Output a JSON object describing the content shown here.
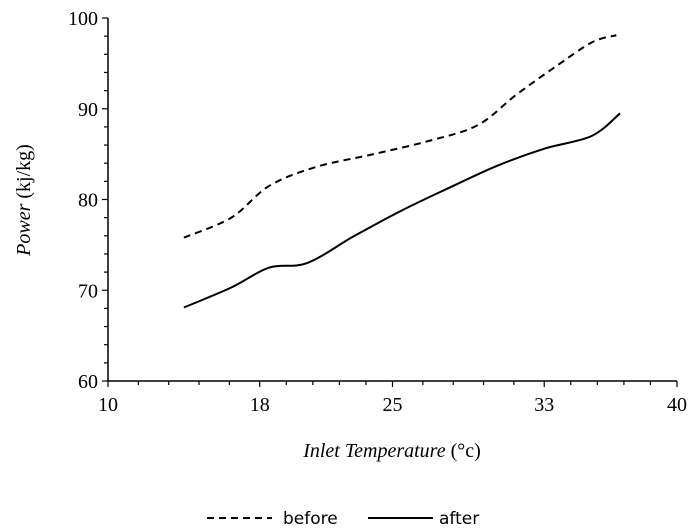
{
  "chart_data": {
    "type": "line",
    "xlabel": {
      "italic": "Inlet Temperature",
      "unit": " (°c)"
    },
    "ylabel": {
      "italic": "Power",
      "unit": " (kj/kg)"
    },
    "xlim": [
      10,
      40
    ],
    "ylim": [
      60,
      100
    ],
    "xticks": [
      10,
      18,
      25,
      33,
      40
    ],
    "xtick_labels": [
      "10",
      "18",
      "25",
      "33",
      "40"
    ],
    "yticks": [
      60,
      70,
      80,
      90,
      100
    ],
    "ytick_labels": [
      "60",
      "70",
      "80",
      "90",
      "100"
    ],
    "grid": false,
    "legend_position": "bottom-center",
    "series": [
      {
        "name": "before",
        "style": "dashed",
        "color": "#000000",
        "x": [
          14.0,
          16.5,
          18.5,
          21.0,
          24.0,
          27.0,
          29.5,
          31.5,
          33.5,
          35.5,
          36.8
        ],
        "y": [
          75.8,
          78.0,
          81.5,
          83.6,
          85.0,
          86.5,
          88.2,
          91.5,
          94.5,
          97.3,
          98.1
        ]
      },
      {
        "name": "after",
        "style": "solid",
        "color": "#000000",
        "x": [
          14.0,
          16.5,
          18.5,
          20.5,
          23.0,
          25.5,
          28.0,
          30.5,
          33.0,
          35.5,
          37.0
        ],
        "y": [
          68.1,
          70.3,
          72.5,
          73.0,
          76.0,
          78.8,
          81.3,
          83.7,
          85.6,
          87.0,
          89.5
        ]
      }
    ]
  }
}
